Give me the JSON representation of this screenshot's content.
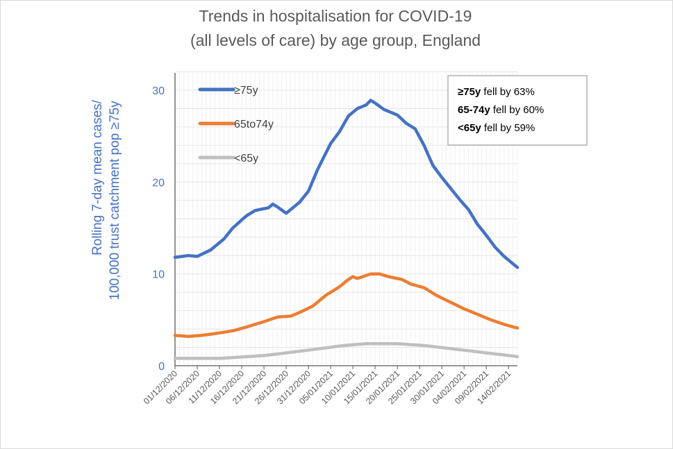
{
  "chart_data": {
    "type": "line",
    "title": [
      "Trends in hospitalisation for COVID-19",
      "(all levels of care) by age group, England"
    ],
    "ylabel": [
      "Rolling  7-day mean cases/",
      "100,000 trust catchment pop ≥75y"
    ],
    "xlabel": "",
    "ylim": [
      0,
      32
    ],
    "yticks": [
      0,
      10,
      20,
      30
    ],
    "n_points": 78,
    "xtick_indices": [
      0,
      5,
      10,
      15,
      20,
      25,
      30,
      35,
      40,
      45,
      50,
      55,
      60,
      65,
      70,
      75
    ],
    "xtick_labels": [
      "01/12/2020",
      "06/12/2020",
      "11/12/2020",
      "16/12/2020",
      "21/12/2020",
      "26/12/2020",
      "31/12/2020",
      "05/01/2021",
      "10/01/2021",
      "15/01/2021",
      "20/01/2021",
      "25/01/2021",
      "30/01/2021",
      "04/02/2021",
      "09/02/2021",
      "14/02/2021"
    ],
    "series": [
      {
        "name": "≥75y",
        "color": "#4472c4",
        "keypoints": [
          [
            0,
            11.8
          ],
          [
            3,
            12.0
          ],
          [
            5,
            11.9
          ],
          [
            8,
            12.6
          ],
          [
            11,
            13.8
          ],
          [
            13,
            15.0
          ],
          [
            16,
            16.3
          ],
          [
            18,
            16.9
          ],
          [
            21,
            17.2
          ],
          [
            22,
            17.6
          ],
          [
            23,
            17.3
          ],
          [
            25,
            16.6
          ],
          [
            28,
            17.8
          ],
          [
            30,
            19.0
          ],
          [
            32,
            21.3
          ],
          [
            35,
            24.2
          ],
          [
            37,
            25.5
          ],
          [
            39,
            27.2
          ],
          [
            41,
            28.0
          ],
          [
            43,
            28.4
          ],
          [
            44,
            28.9
          ],
          [
            45,
            28.6
          ],
          [
            47,
            27.9
          ],
          [
            50,
            27.3
          ],
          [
            52,
            26.4
          ],
          [
            54,
            25.8
          ],
          [
            56,
            24.0
          ],
          [
            58,
            21.8
          ],
          [
            60,
            20.5
          ],
          [
            62,
            19.3
          ],
          [
            64,
            18.1
          ],
          [
            66,
            17.0
          ],
          [
            68,
            15.4
          ],
          [
            70,
            14.2
          ],
          [
            72,
            12.9
          ],
          [
            74,
            11.9
          ],
          [
            77,
            10.7
          ]
        ]
      },
      {
        "name": "65to74y",
        "color": "#ed7d31",
        "keypoints": [
          [
            0,
            3.3
          ],
          [
            3,
            3.2
          ],
          [
            6,
            3.3
          ],
          [
            9,
            3.5
          ],
          [
            13,
            3.8
          ],
          [
            16,
            4.2
          ],
          [
            20,
            4.8
          ],
          [
            23,
            5.3
          ],
          [
            26,
            5.4
          ],
          [
            28,
            5.8
          ],
          [
            31,
            6.5
          ],
          [
            34,
            7.7
          ],
          [
            37,
            8.6
          ],
          [
            39,
            9.4
          ],
          [
            40,
            9.7
          ],
          [
            41,
            9.5
          ],
          [
            44,
            10.0
          ],
          [
            46,
            10.0
          ],
          [
            48,
            9.7
          ],
          [
            51,
            9.4
          ],
          [
            53,
            8.9
          ],
          [
            56,
            8.5
          ],
          [
            59,
            7.6
          ],
          [
            62,
            6.9
          ],
          [
            65,
            6.2
          ],
          [
            68,
            5.6
          ],
          [
            71,
            5.0
          ],
          [
            74,
            4.5
          ],
          [
            77,
            4.1
          ]
        ]
      },
      {
        "name": "<65y",
        "color": "#bfbfbf",
        "keypoints": [
          [
            0,
            0.8
          ],
          [
            10,
            0.8
          ],
          [
            20,
            1.1
          ],
          [
            30,
            1.7
          ],
          [
            38,
            2.2
          ],
          [
            43,
            2.4
          ],
          [
            50,
            2.4
          ],
          [
            56,
            2.2
          ],
          [
            63,
            1.8
          ],
          [
            70,
            1.4
          ],
          [
            77,
            1.0
          ]
        ]
      }
    ],
    "annotation": [
      {
        "bold": "≥75y",
        "rest": " fell by 63%"
      },
      {
        "bold": "65-74y",
        "rest": " fell by 60%"
      },
      {
        "bold": "<65y",
        "rest": " fell by 59%"
      }
    ],
    "legend_position": "top-left",
    "grid": true
  }
}
